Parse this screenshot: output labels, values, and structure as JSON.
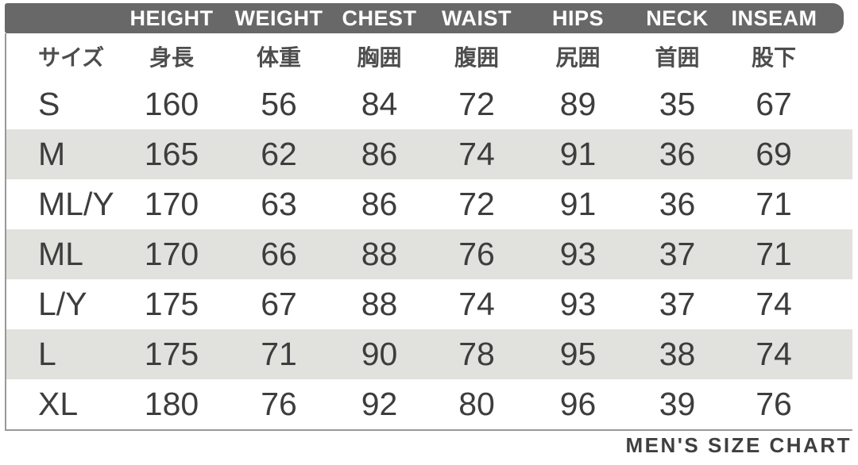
{
  "page": {
    "caption": "MEN'S SIZE CHART"
  },
  "colors": {
    "header_bg": "#686868",
    "header_text": "#ffffff",
    "row_alt_bg": "#e1e1dd",
    "text": "#3d3d3d",
    "text_ja": "#4d4d4d",
    "border": "#999999",
    "caption_color": "#3f3f3f",
    "page_bg": "#ffffff"
  },
  "chart_data": {
    "type": "table",
    "title": "MEN'S SIZE CHART",
    "columns_en": [
      "",
      "HEIGHT",
      "WEIGHT",
      "CHEST",
      "WAIST",
      "HIPS",
      "NECK",
      "INSEAM"
    ],
    "columns_ja": [
      "サイズ",
      "身長",
      "体重",
      "胸囲",
      "腹囲",
      "尻囲",
      "首囲",
      "股下"
    ],
    "column_keys": [
      "size",
      "height",
      "weight",
      "chest",
      "waist",
      "hips",
      "neck",
      "inseam"
    ],
    "rows": [
      {
        "size": "S",
        "values": [
          160,
          56,
          84,
          72,
          89,
          35,
          67
        ]
      },
      {
        "size": "M",
        "values": [
          165,
          62,
          86,
          74,
          91,
          36,
          69
        ]
      },
      {
        "size": "ML/Y",
        "values": [
          170,
          63,
          86,
          72,
          91,
          36,
          71
        ]
      },
      {
        "size": "ML",
        "values": [
          170,
          66,
          88,
          76,
          93,
          37,
          71
        ]
      },
      {
        "size": "L/Y",
        "values": [
          175,
          67,
          88,
          74,
          93,
          37,
          74
        ]
      },
      {
        "size": "L",
        "values": [
          175,
          71,
          90,
          78,
          95,
          38,
          74
        ]
      },
      {
        "size": "XL",
        "values": [
          180,
          76,
          92,
          80,
          96,
          39,
          76
        ]
      }
    ]
  }
}
